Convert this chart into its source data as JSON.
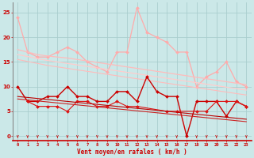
{
  "background_color": "#cbe8e8",
  "grid_color": "#aacece",
  "xlabel": "Vent moyen/en rafales ( km/h )",
  "ylim": [
    -1,
    27
  ],
  "yticks": [
    0,
    5,
    10,
    15,
    20,
    25
  ],
  "xlim": [
    -0.5,
    23.5
  ],
  "series": [
    {
      "color": "#ffaaaa",
      "lw": 0.9,
      "values": [
        24,
        17,
        16,
        16,
        17,
        18,
        17,
        15,
        14,
        13,
        17,
        17,
        26,
        21,
        20,
        19,
        17,
        17,
        10,
        12,
        13,
        15,
        11,
        10
      ]
    },
    {
      "color": "#ffbbbb",
      "lw": 0.9,
      "values": [
        17.5,
        17.0,
        16.5,
        16.2,
        16.0,
        15.8,
        15.5,
        15.2,
        14.9,
        14.6,
        14.3,
        14.0,
        13.7,
        13.4,
        13.1,
        12.8,
        12.5,
        12.2,
        11.9,
        11.6,
        11.3,
        11.0,
        10.7,
        10.4
      ]
    },
    {
      "color": "#ffcccc",
      "lw": 0.9,
      "values": [
        16.5,
        16.1,
        15.7,
        15.3,
        15.0,
        14.7,
        14.4,
        14.1,
        13.8,
        13.5,
        13.2,
        12.9,
        12.6,
        12.3,
        12.0,
        11.7,
        11.4,
        11.1,
        10.8,
        10.5,
        10.2,
        9.9,
        9.6,
        9.3
      ]
    },
    {
      "color": "#ffbbbb",
      "lw": 0.8,
      "values": [
        15.5,
        15.1,
        14.7,
        14.3,
        14.0,
        13.7,
        13.4,
        13.1,
        12.8,
        12.5,
        12.2,
        11.9,
        11.6,
        11.3,
        11.0,
        10.7,
        10.4,
        10.1,
        9.8,
        9.5,
        9.2,
        8.9,
        8.6,
        8.3
      ]
    },
    {
      "color": "#cc0000",
      "lw": 1.0,
      "values": [
        10,
        7,
        7,
        8,
        8,
        10,
        8,
        8,
        7,
        7,
        9,
        9,
        7,
        12,
        9,
        8,
        8,
        0,
        7,
        7,
        7,
        4,
        7,
        6
      ]
    },
    {
      "color": "#dd1111",
      "lw": 0.8,
      "values": [
        null,
        7,
        6,
        6,
        6,
        5,
        7,
        7,
        6,
        6,
        7,
        6,
        6,
        null,
        null,
        5,
        5,
        null,
        5,
        5,
        7,
        7,
        7,
        6
      ]
    },
    {
      "color": "#bb0000",
      "lw": 0.8,
      "values": [
        8.0,
        7.8,
        7.6,
        7.4,
        7.2,
        7.0,
        6.8,
        6.6,
        6.4,
        6.2,
        6.0,
        5.8,
        5.6,
        5.4,
        5.2,
        5.0,
        4.8,
        4.6,
        4.4,
        4.2,
        4.0,
        3.8,
        3.6,
        3.4
      ]
    },
    {
      "color": "#cc2222",
      "lw": 0.8,
      "values": [
        7.5,
        7.3,
        7.1,
        6.9,
        6.7,
        6.5,
        6.3,
        6.1,
        5.9,
        5.7,
        5.5,
        5.3,
        5.1,
        4.9,
        4.7,
        4.5,
        4.3,
        4.1,
        3.9,
        3.7,
        3.5,
        3.3,
        3.1,
        2.9
      ]
    }
  ],
  "wind_arrows_x": [
    0,
    1,
    2,
    3,
    4,
    5,
    6,
    7,
    8,
    9,
    10,
    11,
    12,
    13,
    14,
    15,
    16,
    17,
    18,
    19,
    20,
    21,
    22,
    23
  ],
  "wind_arrow_color": "#cc0000",
  "tick_color": "#cc0000",
  "label_color": "#cc0000"
}
